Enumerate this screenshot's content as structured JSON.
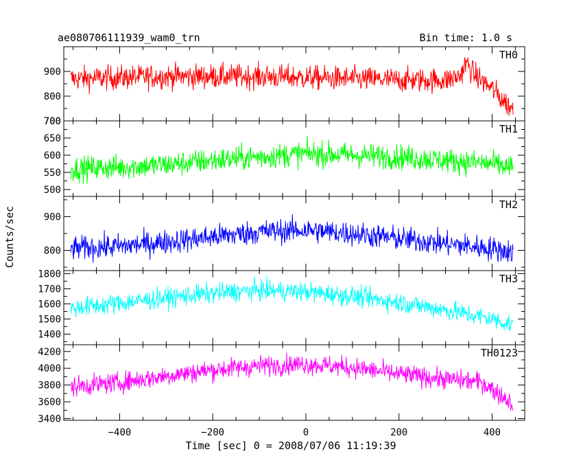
{
  "chart_data": {
    "type": "line",
    "title": "ae080706111939_wam0_trn",
    "bin_time_label": "Bin time: 1.0 s",
    "xlabel": "Time [sec] 0 = 2008/07/06 11:19:39",
    "ylabel": "Counts/sec",
    "xlim": [
      -520,
      470
    ],
    "x_ticks": [
      -400,
      -200,
      0,
      200,
      400
    ],
    "x_tick_labels": [
      "−400",
      "−200",
      "0",
      "200",
      "400"
    ],
    "x_range": [
      -505,
      445
    ],
    "grid": false,
    "panels": [
      {
        "name": "TH0",
        "color": "#ff0000",
        "ylim": [
          700,
          1000
        ],
        "y_ticks": [
          700,
          800,
          900
        ],
        "y_tick_labels": [
          "700",
          "800",
          "900"
        ],
        "profile": [
          [
            -505,
            870
          ],
          [
            -400,
            875
          ],
          [
            -300,
            880
          ],
          [
            -200,
            880
          ],
          [
            -100,
            880
          ],
          [
            0,
            875
          ],
          [
            100,
            870
          ],
          [
            200,
            865
          ],
          [
            300,
            865
          ],
          [
            330,
            880
          ],
          [
            345,
            935
          ],
          [
            360,
            890
          ],
          [
            400,
            830
          ],
          [
            420,
            790
          ],
          [
            445,
            745
          ]
        ],
        "noise": 45
      },
      {
        "name": "TH1",
        "color": "#00ff00",
        "ylim": [
          480,
          700
        ],
        "y_ticks": [
          500,
          550,
          600,
          650,
          700
        ],
        "y_tick_labels": [
          "500",
          "550",
          "600",
          "650",
          "700"
        ],
        "profile": [
          [
            -505,
            560
          ],
          [
            -400,
            565
          ],
          [
            -300,
            572
          ],
          [
            -200,
            585
          ],
          [
            -100,
            595
          ],
          [
            0,
            605
          ],
          [
            100,
            600
          ],
          [
            200,
            595
          ],
          [
            300,
            585
          ],
          [
            400,
            575
          ],
          [
            445,
            562
          ]
        ],
        "noise": 33
      },
      {
        "name": "TH2",
        "color": "#0000ff",
        "ylim": [
          740,
          960
        ],
        "y_ticks": [
          800,
          900
        ],
        "y_tick_labels": [
          "800",
          "900"
        ],
        "profile": [
          [
            -505,
            805
          ],
          [
            -400,
            812
          ],
          [
            -300,
            825
          ],
          [
            -200,
            840
          ],
          [
            -100,
            855
          ],
          [
            0,
            860
          ],
          [
            100,
            850
          ],
          [
            200,
            835
          ],
          [
            300,
            820
          ],
          [
            400,
            805
          ],
          [
            445,
            795
          ]
        ],
        "noise": 33
      },
      {
        "name": "TH3",
        "color": "#00ffff",
        "ylim": [
          1330,
          1820
        ],
        "y_ticks": [
          1400,
          1500,
          1600,
          1700,
          1800
        ],
        "y_tick_labels": [
          "1400",
          "1500",
          "1600",
          "1700",
          "1800"
        ],
        "profile": [
          [
            -505,
            1570
          ],
          [
            -400,
            1605
          ],
          [
            -300,
            1640
          ],
          [
            -200,
            1670
          ],
          [
            -100,
            1690
          ],
          [
            0,
            1680
          ],
          [
            100,
            1650
          ],
          [
            200,
            1610
          ],
          [
            300,
            1560
          ],
          [
            400,
            1500
          ],
          [
            445,
            1460
          ]
        ],
        "noise": 60
      },
      {
        "name": "TH0123",
        "color": "#ff00ff",
        "ylim": [
          3380,
          4280
        ],
        "y_ticks": [
          3400,
          3600,
          3800,
          4000,
          4200
        ],
        "y_tick_labels": [
          "3400",
          "3600",
          "3800",
          "4000",
          "4200"
        ],
        "profile": [
          [
            -505,
            3780
          ],
          [
            -400,
            3830
          ],
          [
            -300,
            3910
          ],
          [
            -200,
            3980
          ],
          [
            -100,
            4030
          ],
          [
            0,
            4050
          ],
          [
            100,
            4010
          ],
          [
            200,
            3930
          ],
          [
            300,
            3870
          ],
          [
            350,
            3850
          ],
          [
            380,
            3830
          ],
          [
            400,
            3750
          ],
          [
            445,
            3580
          ]
        ],
        "noise": 110
      }
    ]
  }
}
